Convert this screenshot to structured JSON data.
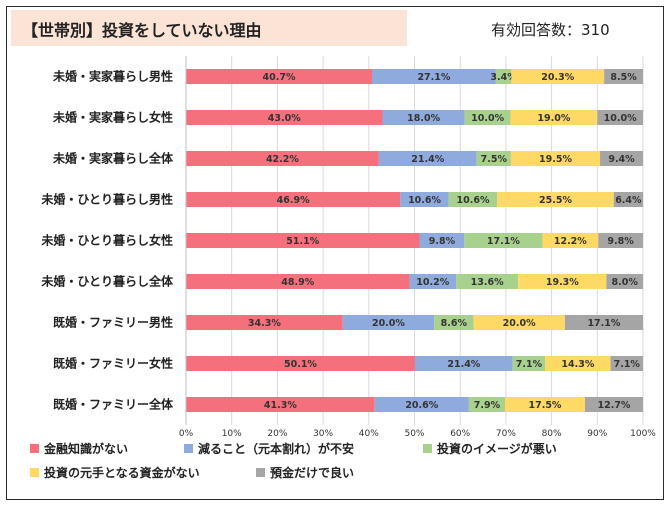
{
  "header": {
    "title": "【世帯別】投資をしていない理由",
    "respondents": "有効回答数：310"
  },
  "chart_data": {
    "type": "bar",
    "orientation": "horizontal",
    "stacked": true,
    "percent_stacked": true,
    "categories": [
      "未婚・実家暮らし男性",
      "未婚・実家暮らし女性",
      "未婚・実家暮らし全体",
      "未婚・ひとり暮らし男性",
      "未婚・ひとり暮らし女性",
      "未婚・ひとり暮らし全体",
      "既婚・ファミリー男性",
      "既婚・ファミリー女性",
      "既婚・ファミリー全体"
    ],
    "series": [
      {
        "name": "金融知識がない",
        "color": "#f4707c",
        "values": [
          40.7,
          43.0,
          42.2,
          46.9,
          51.1,
          48.9,
          34.3,
          50.1,
          41.3
        ],
        "labels": [
          "40.7%",
          "43.0%",
          "42.2%",
          "46.9%",
          "51.1%",
          "48.9%",
          "34.3%",
          "50.1%",
          "41.3%"
        ]
      },
      {
        "name": "減ること（元本割れ）が不安",
        "color": "#8faadc",
        "values": [
          27.1,
          18.0,
          21.4,
          10.6,
          9.8,
          10.2,
          20.0,
          21.4,
          20.6
        ],
        "labels": [
          "27.1%",
          "18.0%",
          "21.4%",
          "10.6%",
          "9.8%",
          "10.2%",
          "20.0%",
          "21.4%",
          "20.6%"
        ]
      },
      {
        "name": "投資のイメージが悪い",
        "color": "#a9d18e",
        "values": [
          3.4,
          10.0,
          7.5,
          10.6,
          17.1,
          13.6,
          8.6,
          7.1,
          7.9
        ],
        "labels": [
          "3.4%",
          "10.0%",
          "7.5%",
          "10.6%",
          "17.1%",
          "13.6%",
          "8.6%",
          "7.1%",
          "7.9%"
        ]
      },
      {
        "name": "投資の元手となる資金がない",
        "color": "#ffd965",
        "values": [
          20.3,
          19.0,
          19.5,
          25.5,
          12.2,
          19.3,
          20.0,
          14.3,
          17.5
        ],
        "labels": [
          "20.3%",
          "19.0%",
          "19.5%",
          "25.5%",
          "12.2%",
          "19.3%",
          "20.0%",
          "14.3%",
          "17.5%"
        ]
      },
      {
        "name": "預金だけで良い",
        "color": "#a5a5a5",
        "values": [
          8.5,
          10.0,
          9.4,
          6.4,
          9.8,
          8.0,
          17.1,
          7.1,
          12.7
        ],
        "labels": [
          "8.5%",
          "10.0%",
          "9.4%",
          "6.4%",
          "9.8%",
          "8.0%",
          "17.1%",
          "7.1%",
          "12.7%"
        ]
      }
    ],
    "xlim": [
      0,
      100
    ],
    "x_ticks": [
      "0%",
      "10%",
      "20%",
      "30%",
      "40%",
      "50%",
      "60%",
      "70%",
      "80%",
      "90%",
      "100%"
    ],
    "grid": true,
    "legend_position": "bottom"
  }
}
